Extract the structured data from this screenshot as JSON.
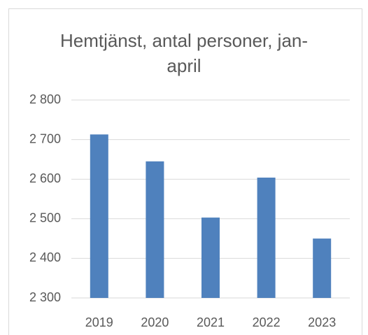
{
  "chart_data": {
    "type": "bar",
    "title": "Hemtjänst, antal personer, jan-april",
    "categories": [
      "2019",
      "2020",
      "2021",
      "2022",
      "2023"
    ],
    "values": [
      2713,
      2645,
      2503,
      2604,
      2450
    ],
    "color": "#4f81bd",
    "ylim": [
      2300,
      2800
    ],
    "yticks": [
      {
        "value": 2300,
        "label": "2 300"
      },
      {
        "value": 2400,
        "label": "2 400"
      },
      {
        "value": 2500,
        "label": "2 500"
      },
      {
        "value": 2600,
        "label": "2 600"
      },
      {
        "value": 2700,
        "label": "2 700"
      },
      {
        "value": 2800,
        "label": "2 800"
      }
    ],
    "grid": true
  }
}
